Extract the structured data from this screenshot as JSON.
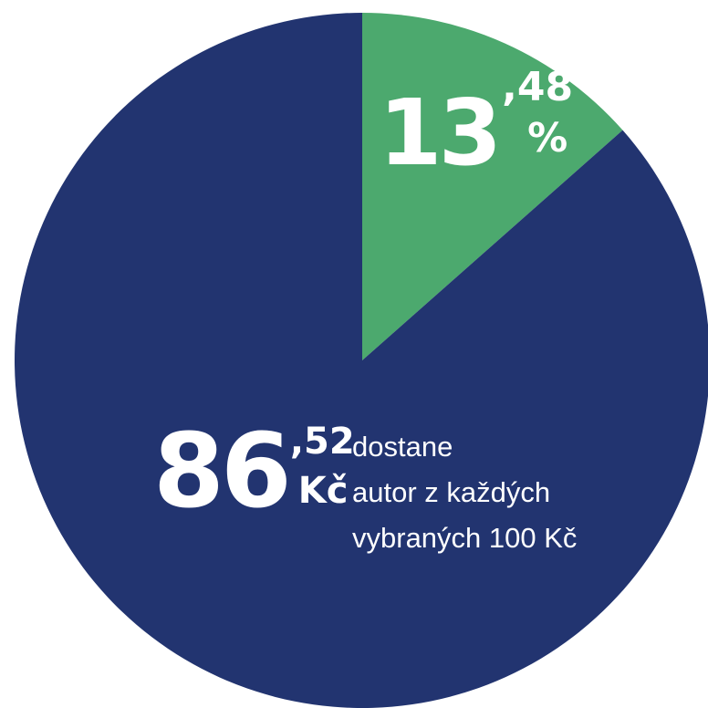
{
  "chart_data": {
    "type": "pie",
    "categories": [
      null,
      null
    ],
    "values": [
      13.48,
      86.52
    ],
    "value_labels": [
      "13,48 %",
      "86,52 Kč"
    ],
    "colors": [
      "#4ca96e",
      "#223470"
    ],
    "annotation": [
      "dostane",
      "autor z každých",
      "vybraných 100 Kč"
    ]
  }
}
